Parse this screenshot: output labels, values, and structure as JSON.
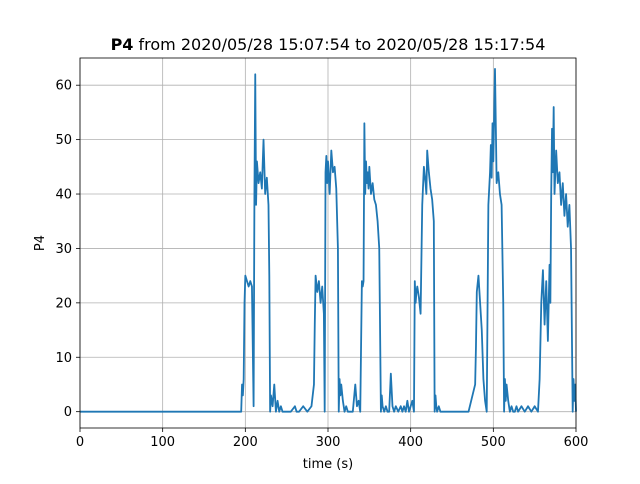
{
  "chart_data": {
    "type": "line",
    "title_bold": "P4",
    "title_rest": " from 2020/05/28 15:07:54 to 2020/05/28 15:17:54",
    "xlabel": "time (s)",
    "ylabel": "P4",
    "xlim": [
      0,
      600
    ],
    "ylim": [
      -3,
      65
    ],
    "xticks": [
      0,
      100,
      200,
      300,
      400,
      500,
      600
    ],
    "yticks": [
      0,
      10,
      20,
      30,
      40,
      50,
      60
    ],
    "grid": true,
    "line_color": "#1f77b4",
    "series": [
      {
        "x": [
          0,
          100,
          195,
          196,
          197,
          198,
          199,
          200,
          202,
          204,
          206,
          208,
          210,
          211,
          212,
          213,
          214,
          216,
          218,
          220,
          222,
          224,
          226,
          228,
          229,
          230,
          231,
          233,
          235,
          237,
          239,
          241,
          243,
          245,
          250,
          255,
          260,
          262,
          265,
          270,
          275,
          280,
          283,
          284,
          285,
          287,
          289,
          291,
          293,
          295,
          296,
          297,
          298,
          299,
          300,
          302,
          304,
          306,
          308,
          310,
          312,
          313,
          314,
          315,
          316,
          318,
          320,
          322,
          324,
          326,
          330,
          333,
          335,
          337,
          339,
          341,
          342,
          343,
          344,
          345,
          346,
          347,
          348,
          349,
          350,
          352,
          354,
          356,
          358,
          360,
          362,
          364,
          365,
          366,
          368,
          370,
          372,
          374,
          376,
          378,
          380,
          382,
          385,
          388,
          390,
          392,
          394,
          396,
          398,
          400,
          402,
          404,
          405,
          406,
          407,
          408,
          410,
          412,
          414,
          416,
          418,
          419,
          420,
          422,
          424,
          426,
          428,
          429,
          430,
          431,
          432,
          434,
          436,
          438,
          440,
          445,
          450,
          460,
          470,
          478,
          479,
          480,
          482,
          484,
          486,
          488,
          490,
          492,
          494,
          496,
          497,
          498,
          499,
          500,
          502,
          504,
          506,
          508,
          510,
          512,
          513,
          514,
          515,
          516,
          518,
          520,
          522,
          524,
          526,
          528,
          530,
          534,
          538,
          542,
          546,
          550,
          554,
          556,
          558,
          560,
          562,
          564,
          566,
          568,
          569,
          570,
          571,
          572,
          573,
          574,
          576,
          578,
          580,
          582,
          584,
          586,
          588,
          590,
          592,
          594,
          596,
          597,
          598,
          599,
          600
        ],
        "y": [
          0,
          0,
          0,
          5,
          3,
          6,
          20,
          25,
          24,
          23,
          24,
          23,
          1,
          40,
          62,
          38,
          46,
          42,
          44,
          41,
          50,
          40,
          43,
          38,
          25,
          0,
          3,
          1,
          5,
          0,
          2,
          0,
          1,
          0,
          0,
          0,
          1,
          0,
          0,
          1,
          0,
          1,
          5,
          16,
          25,
          22,
          24,
          20,
          23,
          18,
          0,
          44,
          47,
          42,
          46,
          40,
          48,
          44,
          45,
          41,
          30,
          0,
          6,
          3,
          5,
          2,
          0,
          1,
          0,
          0,
          0,
          5,
          1,
          2,
          0,
          24,
          23,
          24,
          53,
          40,
          46,
          42,
          44,
          41,
          45,
          40,
          42,
          39,
          38,
          35,
          30,
          0,
          3,
          1,
          0,
          1,
          0,
          0,
          7,
          1,
          0,
          1,
          0,
          1,
          0,
          1,
          0,
          2,
          0,
          1,
          2,
          0,
          24,
          20,
          22,
          23,
          21,
          18,
          38,
          45,
          42,
          40,
          48,
          44,
          41,
          39,
          35,
          0,
          3,
          1,
          0,
          1,
          0,
          0,
          0,
          0,
          0,
          0,
          0,
          5,
          12,
          22,
          25,
          20,
          15,
          6,
          2,
          0,
          38,
          44,
          49,
          43,
          53,
          46,
          63,
          42,
          44,
          40,
          38,
          20,
          0,
          6,
          2,
          5,
          2,
          0,
          1,
          0,
          0,
          1,
          0,
          1,
          0,
          1,
          0,
          1,
          0,
          6,
          20,
          26,
          16,
          24,
          13,
          27,
          20,
          40,
          52,
          44,
          56,
          40,
          48,
          42,
          44,
          38,
          42,
          36,
          40,
          34,
          38,
          30,
          0,
          6,
          2,
          5,
          0
        ]
      }
    ]
  }
}
